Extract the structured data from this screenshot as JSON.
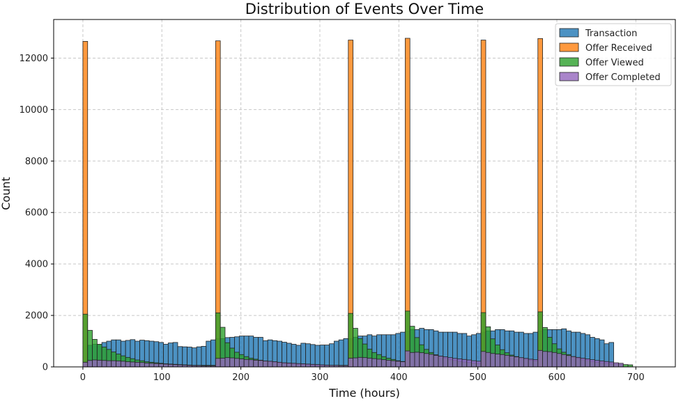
{
  "chart_data": {
    "type": "bar",
    "subtype": "overlaid histogram",
    "title": "Distribution of Events Over Time",
    "xlabel": "Time (hours)",
    "ylabel": "Count",
    "xlim": [
      -37,
      750
    ],
    "ylim": [
      0,
      13500
    ],
    "xticks": [
      0,
      100,
      200,
      300,
      400,
      500,
      600,
      700
    ],
    "yticks": [
      0,
      2000,
      4000,
      6000,
      8000,
      10000,
      12000
    ],
    "grid": true,
    "legend_position": "top-right",
    "bin_start": 0,
    "bin_width": 6,
    "series": [
      {
        "name": "Transaction",
        "color": "#1f77b4",
        "values": [
          220,
          840,
          880,
          870,
          950,
          1000,
          1050,
          1050,
          1000,
          1030,
          1060,
          1000,
          1040,
          1020,
          1000,
          980,
          950,
          880,
          930,
          950,
          790,
          780,
          770,
          740,
          780,
          800,
          1000,
          1050,
          1100,
          1100,
          1140,
          1150,
          1170,
          1200,
          1200,
          1200,
          1150,
          1150,
          1020,
          1050,
          1020,
          1000,
          960,
          920,
          880,
          840,
          920,
          900,
          870,
          840,
          850,
          850,
          900,
          1000,
          1050,
          1100,
          1100,
          1150,
          1200,
          1200,
          1250,
          1200,
          1250,
          1250,
          1250,
          1250,
          1300,
          1350,
          1400,
          1450,
          1450,
          1500,
          1450,
          1450,
          1400,
          1350,
          1350,
          1350,
          1350,
          1300,
          1300,
          1200,
          1250,
          1300,
          1350,
          1400,
          1400,
          1450,
          1450,
          1400,
          1400,
          1350,
          1350,
          1300,
          1300,
          1350,
          1400,
          1450,
          1450,
          1450,
          1450,
          1480,
          1400,
          1350,
          1350,
          1300,
          1250,
          1150,
          1100,
          1050,
          900,
          950
        ]
      },
      {
        "name": "Offer Received",
        "color": "#ff7f0e",
        "values": [
          12650,
          0,
          0,
          0,
          0,
          0,
          0,
          0,
          0,
          0,
          0,
          0,
          0,
          0,
          0,
          0,
          0,
          0,
          0,
          0,
          0,
          0,
          0,
          0,
          0,
          0,
          0,
          0,
          12670,
          0,
          0,
          0,
          0,
          0,
          0,
          0,
          0,
          0,
          0,
          0,
          0,
          0,
          0,
          0,
          0,
          0,
          0,
          0,
          0,
          0,
          0,
          0,
          0,
          0,
          0,
          0,
          12700,
          0,
          0,
          0,
          0,
          0,
          0,
          0,
          0,
          0,
          0,
          0,
          12770,
          0,
          0,
          0,
          0,
          0,
          0,
          0,
          0,
          0,
          0,
          0,
          0,
          0,
          0,
          0,
          12700,
          0,
          0,
          0,
          0,
          0,
          0,
          0,
          0,
          0,
          0,
          0,
          12760,
          0,
          0,
          0,
          0,
          0,
          0,
          0,
          0,
          0,
          0,
          0,
          0,
          0,
          0,
          0,
          0,
          0
        ]
      },
      {
        "name": "Offer Viewed",
        "color": "#2ca02c",
        "values": [
          2050,
          1420,
          1070,
          880,
          770,
          680,
          580,
          500,
          430,
          370,
          320,
          270,
          240,
          200,
          180,
          160,
          140,
          120,
          110,
          100,
          90,
          80,
          70,
          60,
          60,
          60,
          60,
          60,
          2100,
          1540,
          940,
          730,
          570,
          480,
          400,
          340,
          300,
          260,
          230,
          200,
          180,
          160,
          140,
          120,
          110,
          100,
          90,
          80,
          70,
          60,
          60,
          60,
          60,
          60,
          60,
          60,
          2080,
          1500,
          1100,
          890,
          690,
          560,
          480,
          400,
          340,
          290,
          240,
          210,
          2170,
          1580,
          1140,
          860,
          680,
          560,
          470,
          400,
          340,
          290,
          250,
          220,
          190,
          170,
          150,
          130,
          2110,
          1560,
          1090,
          850,
          670,
          550,
          460,
          400,
          350,
          300,
          260,
          230,
          2140,
          1530,
          1150,
          900,
          700,
          570,
          480,
          400,
          340,
          290,
          250,
          210,
          180,
          160,
          140,
          120,
          110,
          100,
          90,
          80
        ]
      },
      {
        "name": "Offer Completed",
        "color": "#9467bd",
        "values": [
          180,
          250,
          270,
          260,
          250,
          240,
          240,
          230,
          220,
          200,
          190,
          180,
          170,
          150,
          140,
          130,
          120,
          110,
          100,
          90,
          80,
          70,
          60,
          50,
          50,
          40,
          40,
          40,
          330,
          340,
          360,
          350,
          330,
          310,
          290,
          280,
          260,
          250,
          230,
          220,
          200,
          180,
          160,
          150,
          140,
          130,
          120,
          110,
          100,
          90,
          80,
          70,
          60,
          60,
          50,
          50,
          340,
          350,
          370,
          360,
          340,
          320,
          300,
          280,
          260,
          240,
          220,
          200,
          620,
          560,
          570,
          550,
          520,
          490,
          450,
          420,
          390,
          360,
          330,
          310,
          290,
          270,
          240,
          220,
          600,
          560,
          520,
          500,
          480,
          450,
          420,
          390,
          360,
          330,
          300,
          280,
          640,
          600,
          590,
          560,
          520,
          480,
          440,
          400,
          370,
          340,
          310,
          280,
          250,
          230,
          210,
          190,
          160,
          140
        ]
      }
    ]
  }
}
